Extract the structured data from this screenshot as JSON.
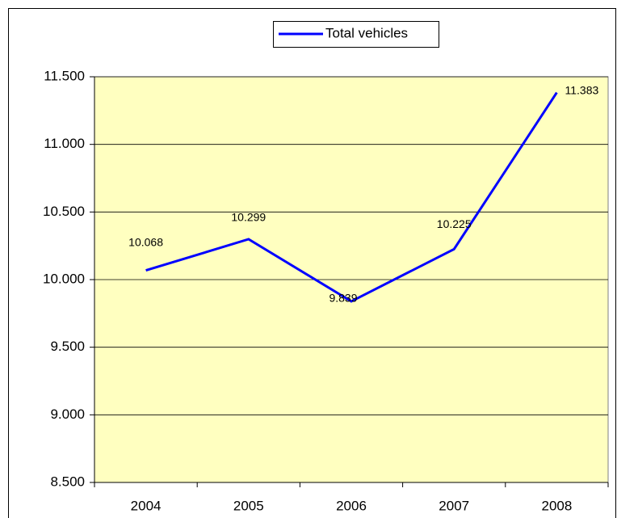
{
  "chart_data": {
    "type": "line",
    "categories": [
      "2004",
      "2005",
      "2006",
      "2007",
      "2008"
    ],
    "series": [
      {
        "name": "Total vehicles",
        "color": "#0000ff",
        "values": [
          10068,
          10299,
          9839,
          10225,
          11383
        ],
        "value_labels": [
          "10.068",
          "10.299",
          "9.839",
          "10.225",
          "11.383"
        ]
      }
    ],
    "ylim": [
      8500,
      11500
    ],
    "yticks": [
      {
        "value": 8500,
        "label": "8.500"
      },
      {
        "value": 9000,
        "label": "9.000"
      },
      {
        "value": 9500,
        "label": "9.500"
      },
      {
        "value": 10000,
        "label": "10.000"
      },
      {
        "value": 10500,
        "label": "10.500"
      },
      {
        "value": 11000,
        "label": "11.000"
      },
      {
        "value": 11500,
        "label": "11.500"
      }
    ],
    "grid": true,
    "legend": "top"
  }
}
